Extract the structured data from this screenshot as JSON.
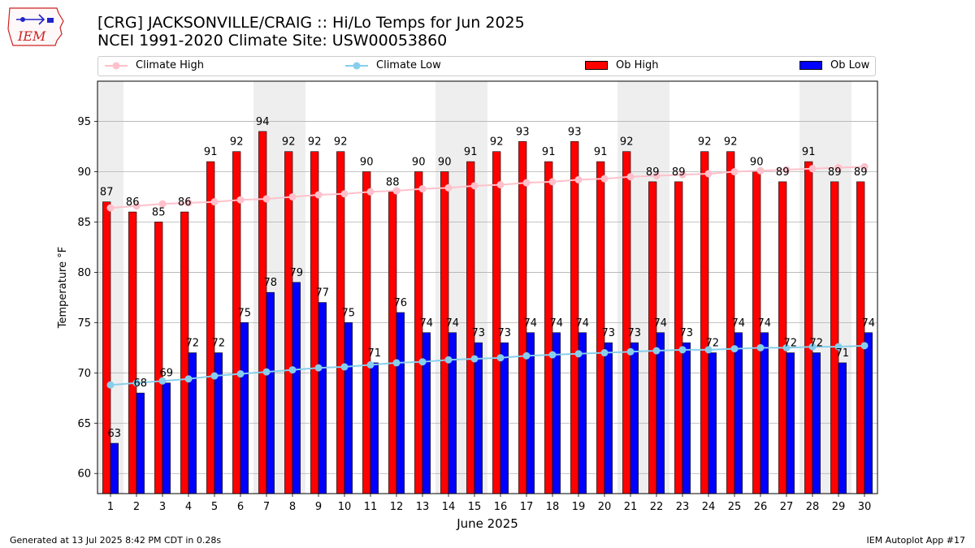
{
  "logo": {
    "text": "IEM"
  },
  "title": {
    "line1": "[CRG] JACKSONVILLE/CRAIG :: Hi/Lo Temps for Jun 2025",
    "line2": "NCEI 1991-2020 Climate Site: USW00053860"
  },
  "legend": {
    "climate_high": "Climate High",
    "climate_low": "Climate Low",
    "ob_high": "Ob High",
    "ob_low": "Ob Low"
  },
  "footer": {
    "generated": "Generated at 13 Jul 2025 8:42 PM CDT in 0.28s",
    "app": "IEM Autoplot App #17"
  },
  "colors": {
    "ob_high": "#ff0000",
    "ob_low": "#0000ff",
    "climate_high": "#ffc0cb",
    "climate_low": "#87ceeb",
    "weekend_shade": "#eeeeee",
    "grid": "#b0b0b0"
  },
  "chart_data": {
    "type": "bar",
    "xlabel": "June 2025",
    "ylabel": "Temperature °F",
    "ylim": [
      58,
      99
    ],
    "yticks": [
      60,
      65,
      70,
      75,
      80,
      85,
      90,
      95
    ],
    "grid": "horizontal",
    "legend_position": "top",
    "categories": [
      "1",
      "2",
      "3",
      "4",
      "5",
      "6",
      "7",
      "8",
      "9",
      "10",
      "11",
      "12",
      "13",
      "14",
      "15",
      "16",
      "17",
      "18",
      "19",
      "20",
      "21",
      "22",
      "23",
      "24",
      "25",
      "26",
      "27",
      "28",
      "29",
      "30"
    ],
    "shaded_days": [
      1,
      7,
      8,
      14,
      15,
      21,
      22,
      28,
      29
    ],
    "series": [
      {
        "name": "Ob High",
        "kind": "bar",
        "values": [
          87,
          86,
          85,
          86,
          91,
          92,
          94,
          92,
          92,
          92,
          90,
          88,
          90,
          90,
          91,
          92,
          93,
          91,
          93,
          91,
          92,
          89,
          89,
          92,
          92,
          90,
          89,
          91,
          89,
          89
        ]
      },
      {
        "name": "Ob Low",
        "kind": "bar",
        "values": [
          63,
          68,
          69,
          72,
          72,
          75,
          78,
          79,
          77,
          75,
          71,
          76,
          74,
          74,
          73,
          73,
          74,
          74,
          74,
          73,
          73,
          74,
          73,
          72,
          74,
          74,
          72,
          72,
          71,
          74
        ]
      },
      {
        "name": "Climate High",
        "kind": "line",
        "values": [
          86.4,
          86.6,
          86.8,
          86.9,
          87.0,
          87.2,
          87.3,
          87.5,
          87.7,
          87.8,
          88.0,
          88.1,
          88.3,
          88.4,
          88.6,
          88.7,
          88.9,
          89.0,
          89.2,
          89.3,
          89.5,
          89.6,
          89.7,
          89.8,
          90.0,
          90.1,
          90.2,
          90.3,
          90.4,
          90.5
        ]
      },
      {
        "name": "Climate Low",
        "kind": "line",
        "values": [
          68.8,
          69.0,
          69.2,
          69.4,
          69.7,
          69.9,
          70.1,
          70.3,
          70.5,
          70.6,
          70.8,
          71.0,
          71.1,
          71.3,
          71.4,
          71.5,
          71.7,
          71.8,
          71.9,
          72.0,
          72.1,
          72.2,
          72.3,
          72.3,
          72.4,
          72.5,
          72.5,
          72.6,
          72.6,
          72.7
        ]
      }
    ]
  }
}
